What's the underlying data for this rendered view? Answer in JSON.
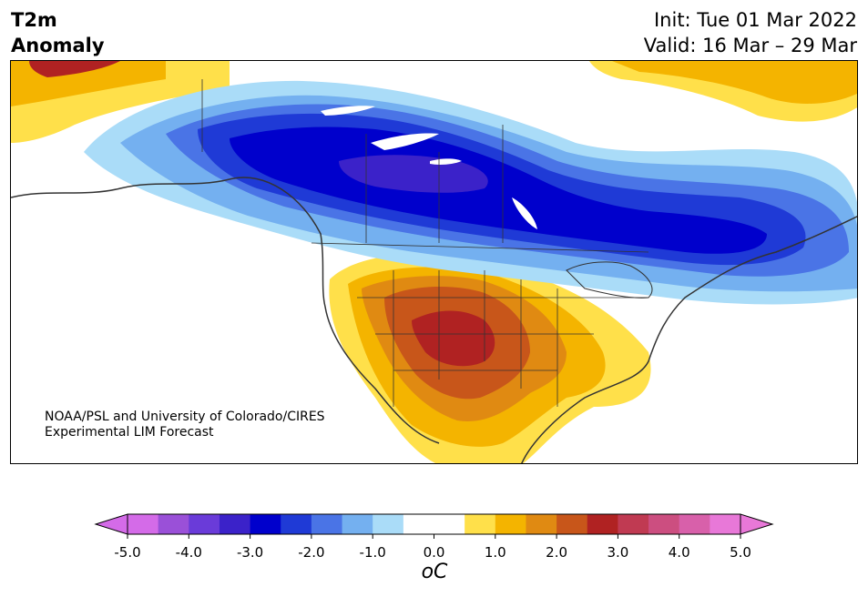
{
  "header": {
    "title_line1": "T2m",
    "title_line2": "Anomaly",
    "init_text": "Init: Tue 01 Mar 2022",
    "valid_text": "Valid: 16 Mar – 29 Mar"
  },
  "map": {
    "credit_line1": "NOAA/PSL and University of Colorado/CIRES",
    "credit_line2": "Experimental LIM Forecast"
  },
  "colorbar": {
    "unit_label": "oC",
    "tick_labels": [
      "-5.0",
      "-4.0",
      "-3.0",
      "-2.0",
      "-1.0",
      "0.0",
      "1.0",
      "2.0",
      "3.0",
      "4.0",
      "5.0"
    ],
    "colors": [
      "#d46be8",
      "#9a50d8",
      "#6a3bd9",
      "#3b22c9",
      "#0000cc",
      "#1f3ad6",
      "#4a74e6",
      "#74b0f0",
      "#aadcf8",
      "#ffffff",
      "#ffffff",
      "#ffe04a",
      "#f4b400",
      "#e08a12",
      "#c8561a",
      "#b02222",
      "#c03a52",
      "#cc4e80",
      "#d860aa",
      "#e878d8"
    ],
    "over_color": "#e878d8",
    "under_color": "#d46be8"
  }
}
